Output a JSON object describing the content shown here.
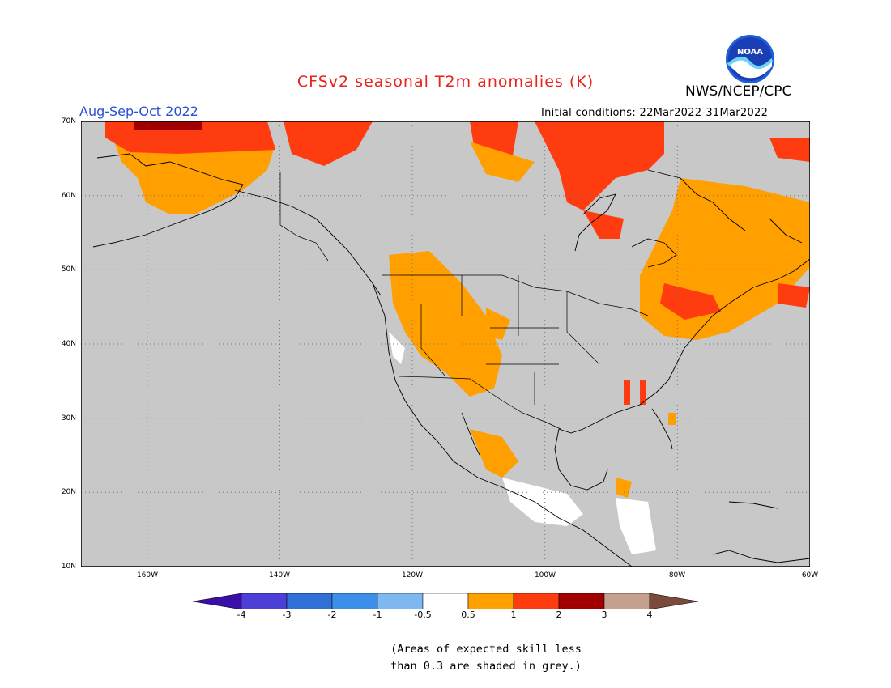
{
  "title": "CFSv2 seasonal T2m anomalies (K)",
  "period": "Aug-Sep-Oct 2022",
  "agency": "NWS/NCEP/CPC",
  "logo_text": "NOAA",
  "initial_conditions": "Initial conditions: 22Mar2022-31Mar2022",
  "lat_labels": [
    "70N",
    "60N",
    "50N",
    "40N",
    "30N",
    "20N",
    "10N"
  ],
  "lon_labels": [
    "160W",
    "140W",
    "120W",
    "100W",
    "80W",
    "60W"
  ],
  "colorbar": {
    "labels": [
      "-4",
      "-3",
      "-2",
      "-1",
      "-0.5",
      "0.5",
      "1",
      "2",
      "3",
      "4"
    ],
    "colors": [
      "#3a0fa8",
      "#4b3fd6",
      "#2f6fd6",
      "#3b8fe8",
      "#7fb8f0",
      "#ffffff",
      "#ff9f00",
      "#ff3c10",
      "#a00000",
      "#c4a08f",
      "#7a4a3a"
    ]
  },
  "note_lines": [
    "(Areas of expected skill less",
    "than 0.3 are shaded in grey.)"
  ],
  "map_colors": {
    "no_skill": "#c8c8c8",
    "white": "#ffffff",
    "orange": "#ff9f00",
    "red": "#ff3c10",
    "dark_red": "#a00000",
    "line": "#000000"
  }
}
